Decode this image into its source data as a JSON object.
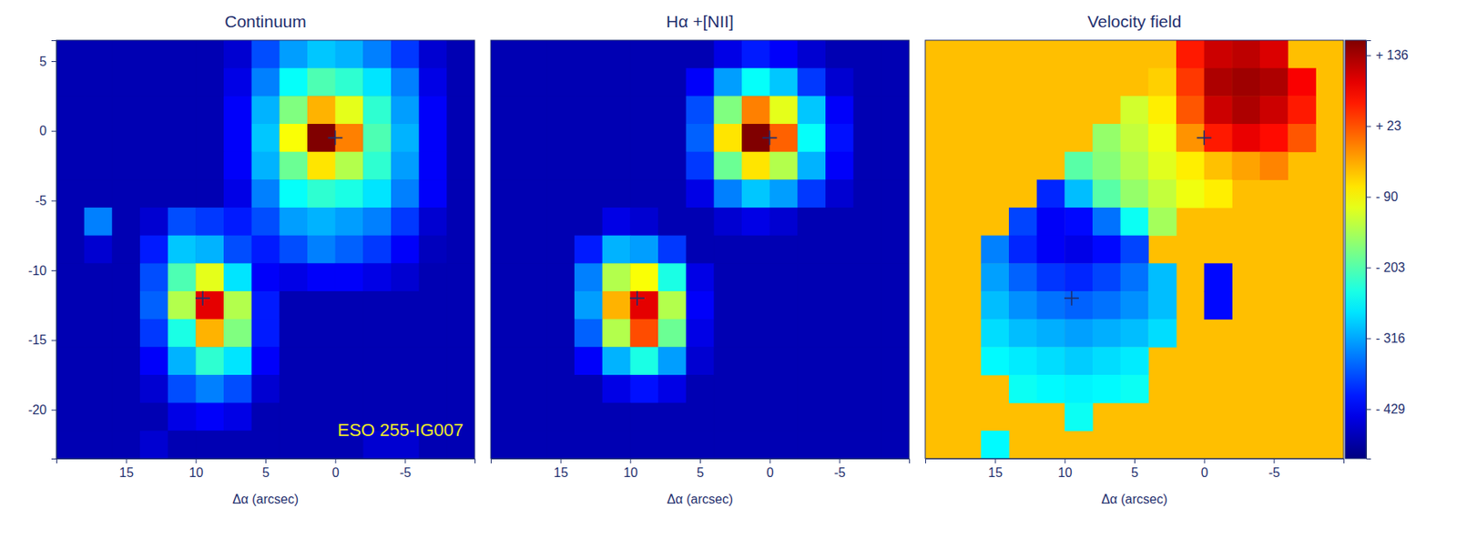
{
  "chart_data": [
    {
      "type": "heatmap",
      "title": "Continuum",
      "x_label": "Δα (arcsec)",
      "annotations": [
        "ESO 255-IG007"
      ],
      "x": [
        19,
        17,
        15,
        13,
        11,
        9,
        7,
        5,
        3,
        1,
        -1,
        -3,
        -5,
        -7,
        -9
      ],
      "y": [
        5.5,
        3.5,
        1.5,
        -0.5,
        -2.5,
        -4.5,
        -6.5,
        -8.5,
        -10.5,
        -12.5,
        -14.5,
        -16.5,
        -18.5,
        -20.5,
        -22.5
      ],
      "xlim": [
        20,
        -10
      ],
      "ylim": [
        -23.5,
        6.5
      ],
      "xticks": [
        15,
        10,
        5,
        0,
        -5
      ],
      "yticks": [
        5,
        0,
        -5,
        -10,
        -15,
        -20
      ],
      "nuclei": {
        "x": [
          0,
          9.5
        ],
        "y": [
          -0.5,
          -12
        ]
      },
      "values": [
        [
          5,
          5,
          5,
          5,
          5,
          5,
          8,
          20,
          28,
          32,
          30,
          25,
          18,
          8,
          5
        ],
        [
          5,
          5,
          5,
          5,
          5,
          5,
          10,
          25,
          38,
          45,
          42,
          35,
          25,
          10,
          5
        ],
        [
          5,
          5,
          5,
          5,
          5,
          5,
          12,
          30,
          50,
          70,
          60,
          42,
          28,
          12,
          5
        ],
        [
          5,
          5,
          5,
          5,
          5,
          5,
          12,
          32,
          62,
          100,
          75,
          45,
          30,
          12,
          5
        ],
        [
          5,
          5,
          5,
          5,
          5,
          5,
          12,
          30,
          48,
          65,
          55,
          42,
          28,
          12,
          5
        ],
        [
          5,
          5,
          5,
          5,
          5,
          5,
          10,
          25,
          38,
          42,
          40,
          35,
          25,
          12,
          5
        ],
        [
          5,
          25,
          5,
          8,
          20,
          18,
          15,
          20,
          28,
          30,
          28,
          25,
          18,
          8,
          5
        ],
        [
          5,
          8,
          5,
          15,
          32,
          30,
          20,
          15,
          20,
          25,
          22,
          18,
          12,
          6,
          5
        ],
        [
          5,
          5,
          5,
          20,
          45,
          60,
          35,
          12,
          10,
          12,
          12,
          10,
          8,
          5,
          5
        ],
        [
          5,
          5,
          5,
          22,
          55,
          90,
          55,
          15,
          5,
          5,
          5,
          5,
          5,
          5,
          5
        ],
        [
          5,
          5,
          5,
          18,
          40,
          70,
          50,
          15,
          5,
          5,
          5,
          5,
          5,
          5,
          5
        ],
        [
          5,
          5,
          5,
          12,
          30,
          42,
          35,
          12,
          5,
          5,
          5,
          5,
          5,
          5,
          5
        ],
        [
          5,
          5,
          5,
          8,
          20,
          25,
          20,
          8,
          5,
          5,
          5,
          5,
          5,
          5,
          5
        ],
        [
          5,
          5,
          5,
          5,
          10,
          12,
          10,
          5,
          5,
          5,
          5,
          5,
          5,
          5,
          5
        ],
        [
          5,
          5,
          5,
          8,
          5,
          5,
          5,
          5,
          5,
          5,
          5,
          8,
          8,
          5,
          5
        ]
      ]
    },
    {
      "type": "heatmap",
      "title": "Hα +[NII]",
      "x_label": "Δα (arcsec)",
      "tick_labels": "x",
      "x": [
        19,
        17,
        15,
        13,
        11,
        9,
        7,
        5,
        3,
        1,
        -1,
        -3,
        -5,
        -7,
        -9
      ],
      "y": [
        5.5,
        3.5,
        1.5,
        -0.5,
        -2.5,
        -4.5,
        -6.5,
        -8.5,
        -10.5,
        -12.5,
        -14.5,
        -16.5,
        -18.5,
        -20.5,
        -22.5
      ],
      "xlim": [
        20,
        -10
      ],
      "ylim": [
        -23.5,
        6.5
      ],
      "xticks": [
        15,
        10,
        5,
        0,
        -5
      ],
      "nuclei": {
        "x": [
          0,
          9.5
        ],
        "y": [
          -0.5,
          -12
        ]
      },
      "values": [
        [
          5,
          5,
          5,
          5,
          5,
          5,
          5,
          5,
          10,
          15,
          12,
          8,
          5,
          5,
          5
        ],
        [
          5,
          5,
          5,
          5,
          5,
          5,
          5,
          12,
          28,
          38,
          32,
          18,
          8,
          5,
          5
        ],
        [
          5,
          5,
          5,
          5,
          5,
          5,
          5,
          20,
          50,
          75,
          60,
          32,
          12,
          5,
          5
        ],
        [
          5,
          5,
          5,
          5,
          5,
          5,
          5,
          22,
          65,
          100,
          78,
          38,
          14,
          5,
          5
        ],
        [
          5,
          5,
          5,
          5,
          5,
          5,
          5,
          18,
          48,
          65,
          55,
          30,
          12,
          5,
          5
        ],
        [
          5,
          5,
          5,
          5,
          5,
          5,
          5,
          10,
          25,
          32,
          28,
          18,
          8,
          5,
          5
        ],
        [
          5,
          5,
          5,
          5,
          10,
          8,
          5,
          5,
          8,
          10,
          8,
          5,
          5,
          5,
          5
        ],
        [
          5,
          5,
          5,
          15,
          30,
          28,
          18,
          5,
          5,
          5,
          5,
          5,
          5,
          5,
          5
        ],
        [
          5,
          5,
          5,
          25,
          55,
          62,
          40,
          10,
          5,
          5,
          5,
          5,
          5,
          5,
          5
        ],
        [
          5,
          5,
          5,
          28,
          70,
          90,
          55,
          12,
          5,
          5,
          5,
          5,
          5,
          5,
          5
        ],
        [
          5,
          5,
          5,
          22,
          55,
          80,
          48,
          10,
          5,
          5,
          5,
          5,
          5,
          5,
          5
        ],
        [
          5,
          5,
          5,
          12,
          30,
          40,
          28,
          8,
          5,
          5,
          5,
          5,
          5,
          5,
          5
        ],
        [
          5,
          5,
          5,
          5,
          10,
          14,
          10,
          5,
          5,
          5,
          5,
          5,
          5,
          5,
          5
        ],
        [
          5,
          5,
          5,
          5,
          5,
          5,
          5,
          5,
          5,
          5,
          5,
          5,
          5,
          5,
          5
        ],
        [
          5,
          5,
          5,
          5,
          5,
          5,
          5,
          5,
          5,
          5,
          5,
          5,
          5,
          5,
          5
        ]
      ]
    },
    {
      "type": "heatmap",
      "title": "Velocity field",
      "x_label": "Δα (arcsec)",
      "tick_labels": "x",
      "x": [
        19,
        17,
        15,
        13,
        11,
        9,
        7,
        5,
        3,
        1,
        -1,
        -3,
        -5,
        -7,
        -9
      ],
      "y": [
        5.5,
        3.5,
        1.5,
        -0.5,
        -2.5,
        -4.5,
        -6.5,
        -8.5,
        -10.5,
        -12.5,
        -14.5,
        -16.5,
        -18.5,
        -20.5,
        -22.5
      ],
      "xlim": [
        20,
        -10
      ],
      "ylim": [
        -23.5,
        6.5
      ],
      "xticks": [
        15,
        10,
        5,
        0,
        -5
      ],
      "nuclei": {
        "x": [
          0,
          9.5
        ],
        "y": [
          -0.5,
          -12
        ]
      },
      "colorbar": {
        "range": [
          -508,
          160
        ],
        "ticks": [
          {
            "value": 136,
            "label": "+ 136"
          },
          {
            "value": 23,
            "label": "+ 23"
          },
          {
            "value": -90,
            "label": "- 90"
          },
          {
            "value": -203,
            "label": "- 203"
          },
          {
            "value": -316,
            "label": "- 316"
          },
          {
            "value": -429,
            "label": "- 429"
          }
        ]
      },
      "values": [
        [
          null,
          null,
          null,
          null,
          null,
          null,
          null,
          null,
          null,
          60,
          110,
          120,
          100,
          null,
          null
        ],
        [
          null,
          null,
          null,
          null,
          null,
          null,
          null,
          null,
          -60,
          40,
          130,
          140,
          130,
          80,
          null
        ],
        [
          null,
          null,
          null,
          null,
          null,
          null,
          null,
          -120,
          -80,
          20,
          110,
          130,
          110,
          60,
          null
        ],
        [
          null,
          null,
          null,
          null,
          null,
          null,
          -160,
          -130,
          -100,
          -20,
          60,
          90,
          70,
          20,
          null
        ],
        [
          null,
          null,
          null,
          null,
          null,
          -200,
          -170,
          -140,
          -110,
          -80,
          -50,
          -30,
          -10,
          null,
          null
        ],
        [
          null,
          null,
          null,
          null,
          -400,
          -300,
          -200,
          -160,
          -130,
          -100,
          -80,
          null,
          null,
          null,
          null
        ],
        [
          null,
          null,
          null,
          -380,
          -430,
          -420,
          -350,
          -250,
          -150,
          null,
          null,
          null,
          null,
          null,
          null
        ],
        [
          null,
          null,
          -340,
          -400,
          -430,
          -440,
          -420,
          -380,
          null,
          null,
          null,
          null,
          null,
          null,
          null
        ],
        [
          null,
          null,
          -320,
          -360,
          -390,
          -400,
          -380,
          -350,
          -300,
          null,
          -420,
          null,
          null,
          null,
          null
        ],
        [
          null,
          null,
          -300,
          -330,
          -350,
          -360,
          -350,
          -330,
          -300,
          null,
          -420,
          null,
          null,
          null,
          null
        ],
        [
          null,
          null,
          -280,
          -300,
          -310,
          -320,
          -310,
          -300,
          -280,
          null,
          null,
          null,
          null,
          null,
          null
        ],
        [
          null,
          null,
          -260,
          -270,
          -280,
          -290,
          -280,
          -270,
          null,
          null,
          null,
          null,
          null,
          null,
          null
        ],
        [
          null,
          null,
          null,
          -250,
          -260,
          -265,
          -260,
          -250,
          null,
          null,
          null,
          null,
          null,
          null,
          null
        ],
        [
          null,
          null,
          null,
          null,
          null,
          -250,
          null,
          null,
          null,
          null,
          null,
          null,
          null,
          null,
          null
        ],
        [
          null,
          null,
          -260,
          null,
          null,
          null,
          null,
          null,
          null,
          null,
          null,
          null,
          null,
          null,
          null
        ]
      ]
    }
  ]
}
